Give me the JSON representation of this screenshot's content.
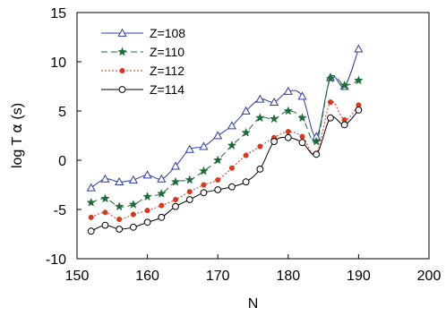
{
  "chart_data": {
    "type": "line",
    "xlabel": "N",
    "ylabel": "log T",
    "ylabel_greek": "α",
    "ylabel_unit": "(s)",
    "xlim": [
      150,
      200
    ],
    "ylim": [
      -10,
      15
    ],
    "xticks": [
      150,
      160,
      170,
      180,
      190,
      200
    ],
    "yticks": [
      -10,
      -5,
      0,
      5,
      10,
      15
    ],
    "grid": false,
    "legend_position": "top-left",
    "series": [
      {
        "name": "Z=108",
        "color": "#2e3b9e",
        "line": "solid",
        "marker": "triangle-open",
        "x": [
          152,
          154,
          156,
          158,
          160,
          162,
          164,
          166,
          168,
          170,
          172,
          174,
          176,
          178,
          180,
          182,
          184,
          186,
          188,
          190
        ],
        "y": [
          -2.8,
          -1.9,
          -2.2,
          -2.0,
          -1.5,
          -1.9,
          -0.6,
          1.1,
          1.4,
          2.5,
          3.5,
          5.0,
          6.2,
          5.9,
          7.0,
          6.5,
          2.4,
          8.4,
          7.5,
          11.3
        ]
      },
      {
        "name": "Z=110",
        "color": "#1e6b3a",
        "line": "dashed",
        "marker": "star-filled",
        "x": [
          152,
          154,
          156,
          158,
          160,
          162,
          164,
          166,
          168,
          170,
          172,
          174,
          176,
          178,
          180,
          182,
          184,
          186,
          188,
          190
        ],
        "y": [
          -4.3,
          -3.9,
          -4.7,
          -4.5,
          -3.7,
          -3.4,
          -2.2,
          -2.0,
          -1.1,
          0.0,
          1.5,
          2.8,
          4.3,
          4.2,
          5.0,
          4.3,
          1.9,
          8.3,
          7.6,
          8.1
        ]
      },
      {
        "name": "Z=112",
        "color": "#d43a1f",
        "line": "dotted",
        "marker": "circle-filled",
        "x": [
          152,
          154,
          156,
          158,
          160,
          162,
          164,
          166,
          168,
          170,
          172,
          174,
          176,
          178,
          180,
          182,
          184,
          186,
          188,
          190
        ],
        "y": [
          -5.8,
          -5.3,
          -6.0,
          -5.5,
          -5.1,
          -4.6,
          -4.0,
          -3.2,
          -2.5,
          -2.0,
          -0.8,
          0.5,
          1.4,
          2.3,
          2.9,
          2.4,
          0.7,
          5.9,
          4.1,
          5.6
        ]
      },
      {
        "name": "Z=114",
        "color": "#000000",
        "line": "solid",
        "marker": "circle-open",
        "x": [
          152,
          154,
          156,
          158,
          160,
          162,
          164,
          166,
          168,
          170,
          172,
          174,
          176,
          178,
          180,
          182,
          184,
          186,
          188,
          190
        ],
        "y": [
          -7.2,
          -6.6,
          -7.0,
          -6.8,
          -6.3,
          -5.8,
          -4.7,
          -4.0,
          -3.3,
          -3.0,
          -2.7,
          -2.2,
          -0.9,
          1.9,
          2.3,
          1.8,
          0.6,
          4.3,
          3.6,
          5.1
        ]
      }
    ]
  }
}
